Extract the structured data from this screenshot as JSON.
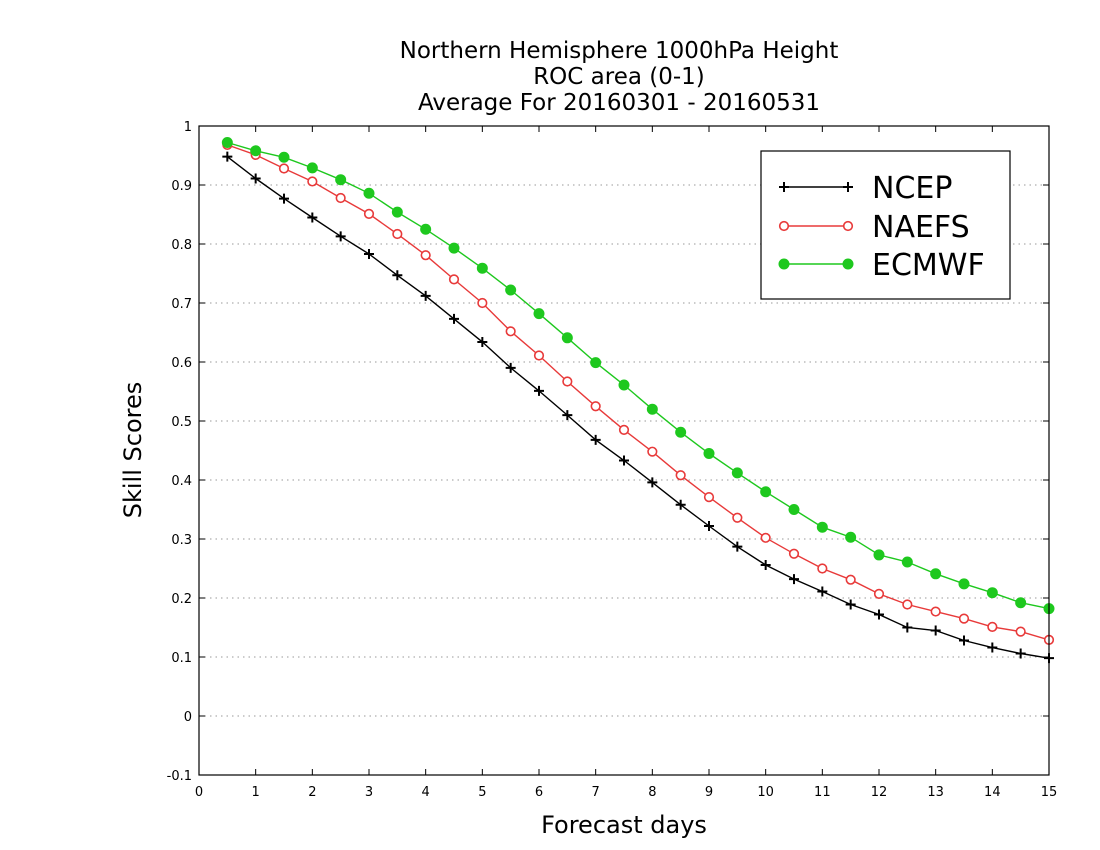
{
  "chart_data": {
    "type": "line",
    "title_lines": [
      "Northern Hemisphere 1000hPa Height",
      "ROC area (0-1)",
      "Average For 20160301 - 20160531"
    ],
    "xlabel": "Forecast days",
    "ylabel": "Skill Scores",
    "xlim": [
      0,
      15
    ],
    "ylim": [
      -0.1,
      1
    ],
    "xticks": [
      0,
      1,
      2,
      3,
      4,
      5,
      6,
      7,
      8,
      9,
      10,
      11,
      12,
      13,
      14,
      15
    ],
    "xtick_labels": [
      "0",
      "1",
      "2",
      "3",
      "4",
      "5",
      "6",
      "7",
      "8",
      "9",
      "10",
      "11",
      "12",
      "13",
      "14",
      "15"
    ],
    "yticks": [
      -0.1,
      0,
      0.1,
      0.2,
      0.3,
      0.4,
      0.5,
      0.6,
      0.7,
      0.8,
      0.9,
      1
    ],
    "ytick_labels": [
      "-0.1",
      "0",
      "0.1",
      "0.2",
      "0.3",
      "0.4",
      "0.5",
      "0.6",
      "0.7",
      "0.8",
      "0.9",
      "1"
    ],
    "grid": true,
    "legend_position": "top-right",
    "x": [
      0.5,
      1,
      1.5,
      2,
      2.5,
      3,
      3.5,
      4,
      4.5,
      5,
      5.5,
      6,
      6.5,
      7,
      7.5,
      8,
      8.5,
      9,
      9.5,
      10,
      10.5,
      11,
      11.5,
      12,
      12.5,
      13,
      13.5,
      14,
      14.5,
      15
    ],
    "series": [
      {
        "name": "NCEP",
        "color": "#000000",
        "marker": "plus",
        "values": [
          0.948,
          0.911,
          0.877,
          0.845,
          0.813,
          0.783,
          0.747,
          0.712,
          0.673,
          0.634,
          0.59,
          0.551,
          0.51,
          0.468,
          0.433,
          0.396,
          0.358,
          0.322,
          0.287,
          0.256,
          0.232,
          0.211,
          0.189,
          0.172,
          0.15,
          0.145,
          0.128,
          0.116,
          0.106,
          0.098
        ]
      },
      {
        "name": "NAEFS",
        "color": "#e83a3a",
        "marker": "open-circle",
        "values": [
          0.968,
          0.951,
          0.928,
          0.906,
          0.878,
          0.851,
          0.817,
          0.781,
          0.74,
          0.7,
          0.652,
          0.611,
          0.567,
          0.525,
          0.485,
          0.448,
          0.408,
          0.371,
          0.336,
          0.302,
          0.275,
          0.25,
          0.231,
          0.207,
          0.189,
          0.177,
          0.165,
          0.151,
          0.143,
          0.129
        ]
      },
      {
        "name": "ECMWF",
        "color": "#1ec81e",
        "marker": "filled-circle",
        "values": [
          0.972,
          0.958,
          0.947,
          0.929,
          0.909,
          0.886,
          0.854,
          0.825,
          0.793,
          0.759,
          0.722,
          0.682,
          0.641,
          0.599,
          0.561,
          0.52,
          0.481,
          0.445,
          0.412,
          0.38,
          0.35,
          0.32,
          0.303,
          0.273,
          0.261,
          0.241,
          0.224,
          0.209,
          0.192,
          0.182
        ]
      }
    ]
  }
}
